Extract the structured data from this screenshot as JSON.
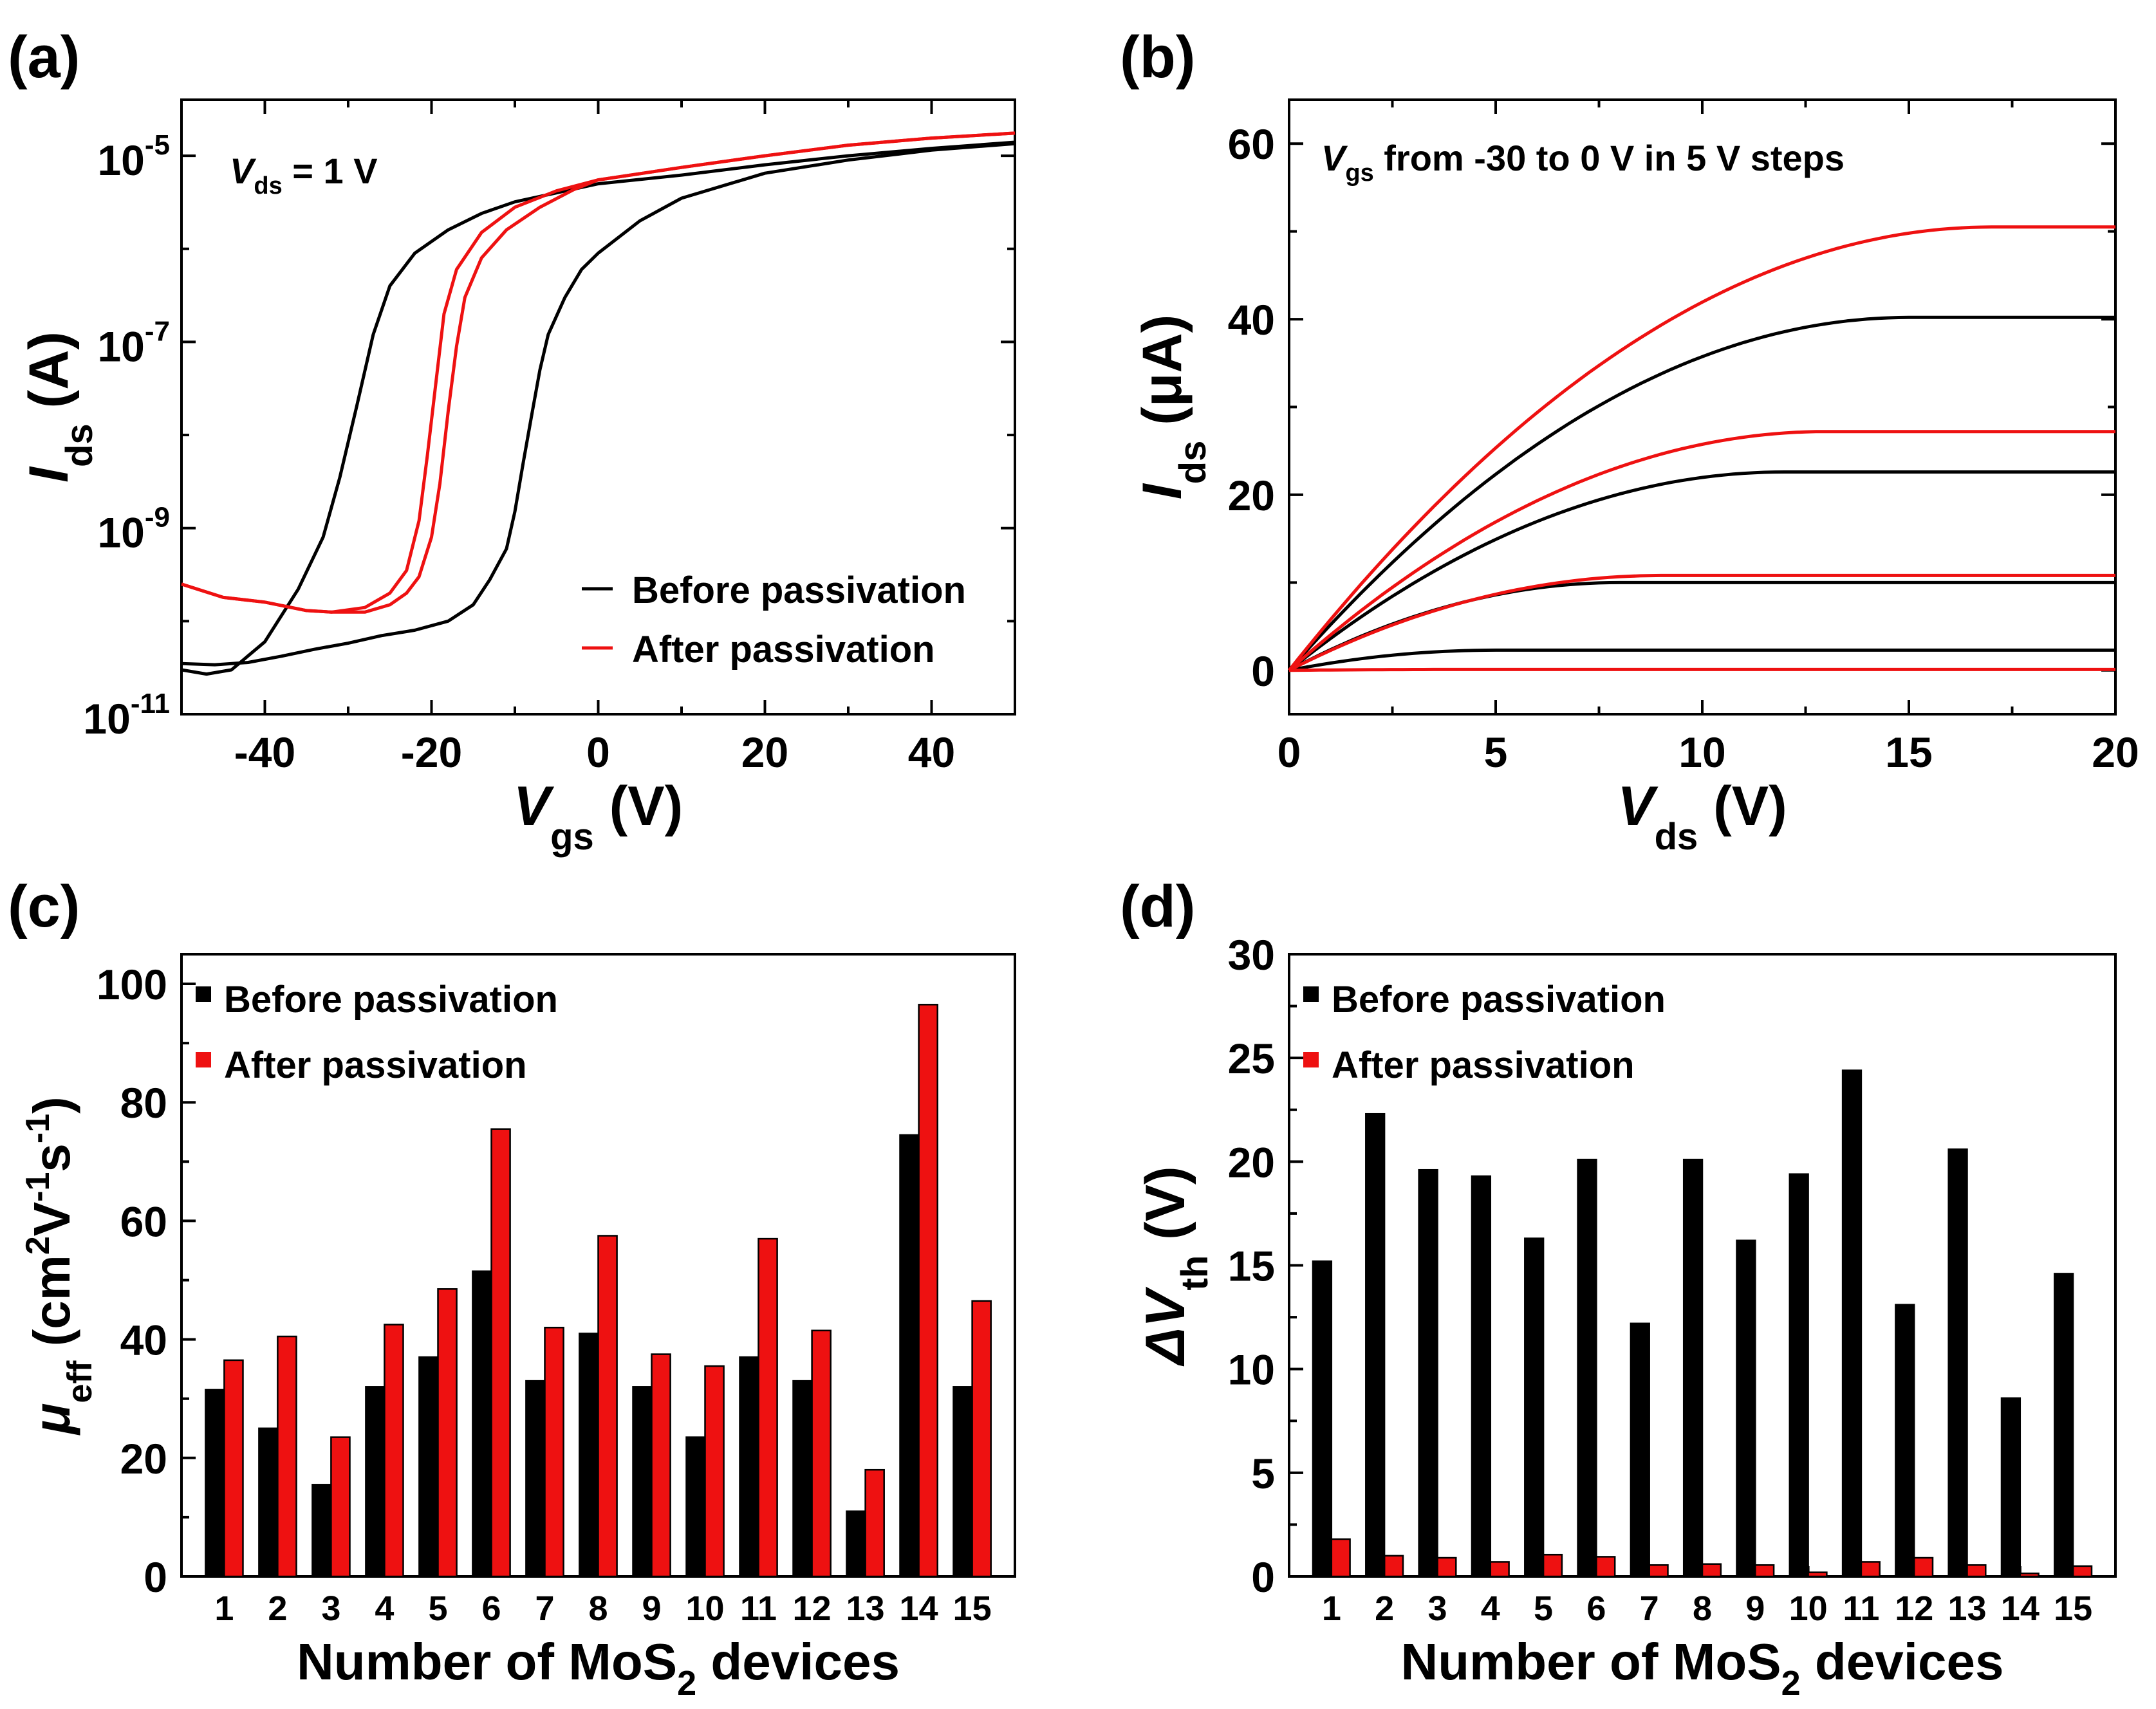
{
  "colors": {
    "before": "#000000",
    "after": "#ee1111"
  },
  "chart_data": [
    {
      "panel": "(a)",
      "type": "line",
      "yscale": "log",
      "xlabel": {
        "main": "V",
        "sub": "gs",
        "rest": " (V)"
      },
      "ylabel": {
        "main": "I",
        "sub": "ds",
        "rest": " (A)"
      },
      "xlim": [
        -50,
        50
      ],
      "ylim": [
        1e-11,
        4e-05
      ],
      "xticks": [
        -40,
        -20,
        0,
        20,
        40
      ],
      "yticks": [
        {
          "v": 1e-05,
          "base": "10",
          "exp": "-5"
        },
        {
          "v": 1e-07,
          "base": "10",
          "exp": "-7"
        },
        {
          "v": 1e-09,
          "base": "10",
          "exp": "-9"
        },
        {
          "v": 1e-11,
          "base": "10",
          "exp": "-11"
        }
      ],
      "annotation": {
        "main": "V",
        "sub": "ds",
        "rest": " = 1 V"
      },
      "legend": [
        "Before passivation",
        "After passivation"
      ],
      "series": [
        {
          "name": "Before passivation",
          "color": "before",
          "x": [
            -50,
            -47,
            -44,
            -40,
            -36,
            -33,
            -31,
            -29,
            -27,
            -25,
            -22,
            -18,
            -14,
            -10,
            -5,
            0,
            10,
            20,
            30,
            40,
            50
          ],
          "y": [
            3e-11,
            2.7e-11,
            3e-11,
            6e-11,
            2.2e-10,
            8e-10,
            3.5e-09,
            2e-08,
            1.2e-07,
            4e-07,
            9e-07,
            1.6e-06,
            2.4e-06,
            3.2e-06,
            4e-06,
            5e-06,
            6.2e-06,
            8e-06,
            1e-05,
            1.2e-05,
            1.4e-05
          ]
        },
        {
          "name": "Before passivation",
          "color": "before",
          "x": [
            -50,
            -46,
            -42,
            -38,
            -34,
            -30,
            -26,
            -22,
            -18,
            -15,
            -13,
            -11,
            -10,
            -9,
            -8,
            -7,
            -6,
            -4,
            -2,
            0,
            5,
            10,
            20,
            30,
            40,
            50
          ],
          "y": [
            3.5e-11,
            3.4e-11,
            3.6e-11,
            4.2e-11,
            5e-11,
            5.8e-11,
            7e-11,
            8e-11,
            1e-10,
            1.5e-10,
            2.8e-10,
            6e-10,
            1.5e-09,
            5e-09,
            1.6e-08,
            5e-08,
            1.2e-07,
            3e-07,
            6e-07,
            9e-07,
            2e-06,
            3.5e-06,
            6.5e-06,
            9e-06,
            1.15e-05,
            1.35e-05
          ]
        },
        {
          "name": "After passivation",
          "color": "after",
          "x": [
            -50,
            -45,
            -40,
            -35,
            -32,
            -28,
            -25,
            -23,
            -21.5,
            -20.5,
            -19.5,
            -18.5,
            -17,
            -14,
            -10,
            -5,
            0,
            10,
            20,
            30,
            40,
            50
          ],
          "y": [
            2.5e-10,
            1.8e-10,
            1.6e-10,
            1.3e-10,
            1.25e-10,
            1.4e-10,
            2e-10,
            3.5e-10,
            1.2e-09,
            6e-09,
            3.5e-08,
            2e-07,
            6e-07,
            1.5e-06,
            2.8e-06,
            4.2e-06,
            5.5e-06,
            7.5e-06,
            1e-05,
            1.3e-05,
            1.55e-05,
            1.75e-05
          ]
        },
        {
          "name": "After passivation",
          "color": "after",
          "x": [
            -50,
            -45,
            -40,
            -35,
            -32,
            -28,
            -25,
            -23,
            -21.5,
            -20,
            -19,
            -18,
            -17,
            -16,
            -14,
            -11,
            -7,
            -3,
            0,
            10,
            20,
            30,
            40,
            50
          ],
          "y": [
            2.5e-10,
            1.8e-10,
            1.6e-10,
            1.3e-10,
            1.25e-10,
            1.25e-10,
            1.5e-10,
            2e-10,
            3e-10,
            8e-10,
            3e-09,
            1.8e-08,
            9e-08,
            3e-07,
            8e-07,
            1.6e-06,
            2.8e-06,
            4.3e-06,
            5.5e-06,
            7.5e-06,
            1e-05,
            1.3e-05,
            1.55e-05,
            1.75e-05
          ]
        }
      ]
    },
    {
      "panel": "(b)",
      "type": "line",
      "xlabel": {
        "main": "V",
        "sub": "ds",
        "rest": " (V)"
      },
      "ylabel": {
        "main": "I",
        "sub": "ds",
        "rest": " (μA)"
      },
      "xlim": [
        0,
        20
      ],
      "ylim": [
        -5,
        65
      ],
      "xticks": [
        0,
        5,
        10,
        15,
        20
      ],
      "yticks": [
        0,
        20,
        40,
        60
      ],
      "annotation": {
        "main": "V",
        "sub": "gs",
        "rest": " from -30 to 0 V in 5 V steps"
      },
      "series": [
        {
          "name": "Before passivation",
          "color": "before",
          "isat": 40.2,
          "vsat": 15
        },
        {
          "name": "Before passivation",
          "color": "before",
          "isat": 22.6,
          "vsat": 12
        },
        {
          "name": "Before passivation",
          "color": "before",
          "isat": 10.0,
          "vsat": 8
        },
        {
          "name": "Before passivation",
          "color": "before",
          "isat": 2.3,
          "vsat": 5
        },
        {
          "name": "After passivation",
          "color": "after",
          "isat": 50.5,
          "vsat": 17
        },
        {
          "name": "After passivation",
          "color": "after",
          "isat": 27.2,
          "vsat": 13
        },
        {
          "name": "After passivation",
          "color": "after",
          "isat": 10.8,
          "vsat": 9
        },
        {
          "name": "After passivation",
          "color": "after",
          "isat": 0.1,
          "vsat": 4
        }
      ]
    },
    {
      "panel": "(c)",
      "type": "bar",
      "categories": [
        "1",
        "2",
        "3",
        "4",
        "5",
        "6",
        "7",
        "8",
        "9",
        "10",
        "11",
        "12",
        "13",
        "14",
        "15"
      ],
      "xlabel": "Number of MoS",
      "xlabel_sub": "2",
      "xlabel_rest": " devices",
      "ylabel": {
        "main": "μ",
        "sub": "eff",
        "rest": " (cm",
        "sup1": "2",
        "mid": "V",
        "sup2": "-1",
        "mid2": "s",
        "sup3": "-1",
        "end": ")"
      },
      "ylim": [
        0,
        105
      ],
      "yticks": [
        0,
        20,
        40,
        60,
        80,
        100
      ],
      "legend": [
        "Before passivation",
        "After passivation"
      ],
      "series": [
        {
          "name": "Before passivation",
          "color": "before",
          "values": [
            31.5,
            25,
            15.5,
            32,
            37,
            51.5,
            33,
            41,
            32,
            23.5,
            37,
            33,
            11,
            74.5,
            32
          ]
        },
        {
          "name": "After passivation",
          "color": "after",
          "values": [
            36.5,
            40.5,
            23.5,
            42.5,
            48.5,
            75.5,
            42,
            57.5,
            37.5,
            35.5,
            57,
            41.5,
            18,
            96.5,
            46.5
          ]
        }
      ]
    },
    {
      "panel": "(d)",
      "type": "bar",
      "categories": [
        "1",
        "2",
        "3",
        "4",
        "5",
        "6",
        "7",
        "8",
        "9",
        "10",
        "11",
        "12",
        "13",
        "14",
        "15"
      ],
      "xlabel": "Number of MoS",
      "xlabel_sub": "2",
      "xlabel_rest": " devices",
      "ylabel": {
        "main": "ΔV",
        "sub": "th",
        "rest": " (V)"
      },
      "ylim": [
        0,
        30
      ],
      "yticks": [
        0,
        5,
        10,
        15,
        20,
        25,
        30
      ],
      "legend": [
        "Before passivation",
        "After passivation"
      ],
      "series": [
        {
          "name": "Before passivation",
          "color": "before",
          "values": [
            15.2,
            22.3,
            19.6,
            19.3,
            16.3,
            20.1,
            12.2,
            20.1,
            16.2,
            19.4,
            24.4,
            13.1,
            20.6,
            8.6,
            14.6
          ]
        },
        {
          "name": "After passivation",
          "color": "after",
          "values": [
            1.8,
            1.0,
            0.9,
            0.7,
            1.05,
            0.95,
            0.55,
            0.6,
            0.55,
            0.2,
            0.7,
            0.9,
            0.55,
            0.15,
            0.5
          ]
        }
      ]
    }
  ]
}
